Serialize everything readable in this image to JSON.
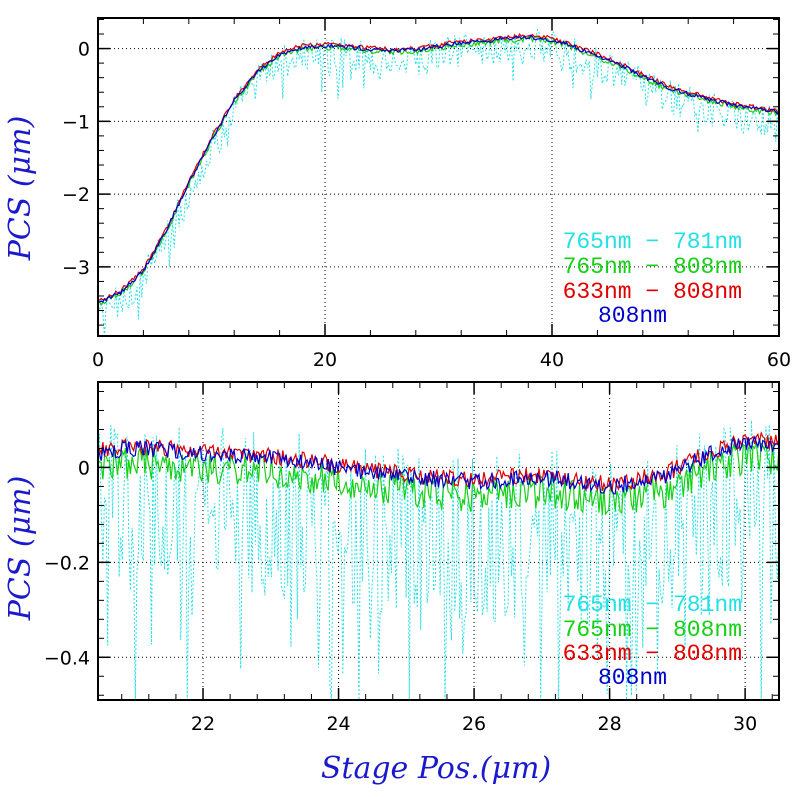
{
  "chart_data": [
    {
      "type": "line",
      "ylabel": "PCS (μm)",
      "xlabel": "",
      "xlim": [
        0,
        60
      ],
      "ylim": [
        -3.95,
        0.42
      ],
      "xticks": [
        0,
        20,
        40,
        60
      ],
      "xtick_labels": [
        "0",
        "20",
        "40",
        "60"
      ],
      "yticks": [
        0,
        -1,
        -2,
        -3
      ],
      "ytick_labels": [
        "0",
        "−1",
        "−2",
        "−3"
      ],
      "grid": true,
      "legend": [
        "765nm − 781nm",
        "765nm − 808nm",
        "633nm − 808nm",
        "808nm"
      ],
      "legend_placement": "bottom-right",
      "base_curve": {
        "x": [
          0,
          2,
          4,
          6,
          8,
          10,
          12,
          14,
          16,
          18,
          20,
          22,
          24,
          26,
          28,
          30,
          32,
          34,
          36,
          38,
          40,
          42,
          44,
          46,
          48,
          50,
          52,
          54,
          56,
          58,
          60
        ],
        "y": [
          -3.5,
          -3.35,
          -3.05,
          -2.5,
          -1.85,
          -1.25,
          -0.72,
          -0.32,
          -0.08,
          0.02,
          0.04,
          0.02,
          -0.01,
          -0.03,
          -0.02,
          0.03,
          0.08,
          0.1,
          0.14,
          0.16,
          0.12,
          0.02,
          -0.1,
          -0.22,
          -0.38,
          -0.52,
          -0.62,
          -0.7,
          -0.78,
          -0.83,
          -0.88
        ]
      },
      "series": [
        {
          "name": "765nm − 781nm",
          "color": "#22e0e6",
          "style": "dotted",
          "offset": -0.12,
          "noise": 0.24
        },
        {
          "name": "765nm − 808nm",
          "color": "#16d016",
          "style": "solid",
          "offset": -0.02,
          "noise": 0.04
        },
        {
          "name": "633nm − 808nm",
          "color": "#e00000",
          "style": "solid",
          "offset": 0.02,
          "noise": 0.03
        },
        {
          "name": "808nm",
          "color": "#0000cc",
          "style": "solid",
          "offset": 0.0,
          "noise": 0.03
        }
      ]
    },
    {
      "type": "line",
      "ylabel": "PCS (μm)",
      "xlabel": "Stage Pos.(μm)",
      "xlim": [
        20.45,
        30.5
      ],
      "ylim": [
        -0.49,
        0.18
      ],
      "xticks": [
        22,
        24,
        26,
        28,
        30
      ],
      "xtick_labels": [
        "22",
        "24",
        "26",
        "28",
        "30"
      ],
      "yticks": [
        0,
        -0.2,
        -0.4
      ],
      "ytick_labels": [
        "0",
        "−0.2",
        "−0.4"
      ],
      "grid": true,
      "legend": [
        "765nm − 781nm",
        "765nm − 808nm",
        "633nm − 808nm",
        "808nm"
      ],
      "legend_placement": "bottom-right",
      "base_curve": {
        "x": [
          20.45,
          21,
          22,
          23,
          24,
          25,
          26,
          27,
          28,
          28.8,
          29.5,
          30,
          30.5
        ],
        "y": [
          0.03,
          0.04,
          0.03,
          0.02,
          0.0,
          -0.02,
          -0.03,
          -0.02,
          -0.04,
          -0.02,
          0.03,
          0.05,
          0.05
        ]
      },
      "series": [
        {
          "name": "765nm − 781nm",
          "color": "#22e0e6",
          "style": "dotted",
          "offset": -0.12,
          "noise": 0.18
        },
        {
          "name": "765nm − 808nm",
          "color": "#16d016",
          "style": "solid",
          "offset": -0.03,
          "noise": 0.035
        },
        {
          "name": "633nm − 808nm",
          "color": "#e00000",
          "style": "solid",
          "offset": 0.005,
          "noise": 0.018
        },
        {
          "name": "808nm",
          "color": "#0000cc",
          "style": "solid",
          "offset": 0.0,
          "noise": 0.018
        }
      ]
    }
  ]
}
